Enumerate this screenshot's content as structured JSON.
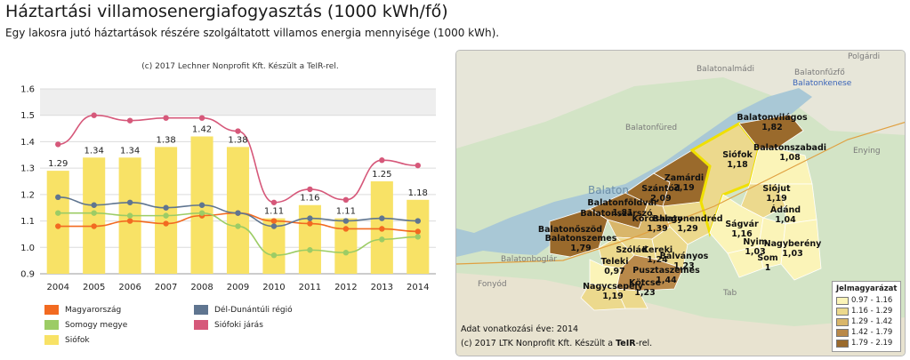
{
  "page": {
    "title": "Háztartási villamosenergiafogyasztás (1000 kWh/fő)",
    "subtitle": "Egy lakosra jutó háztartások részére szolgáltatott villamos energia mennyisége (1000 kWh)."
  },
  "chart_data": {
    "type": "bar",
    "credit": "(c) 2017 Lechner Nonprofit Kft. Készült a TeIR-rel.",
    "categories": [
      "2004",
      "2005",
      "2006",
      "2007",
      "2008",
      "2009",
      "2010",
      "2011",
      "2012",
      "2013",
      "2014"
    ],
    "ylim": [
      0.9,
      1.6
    ],
    "yticks": [
      0.9,
      1.0,
      1.1,
      1.2,
      1.3,
      1.4,
      1.5,
      1.6
    ],
    "bar_series": {
      "name": "Siófok",
      "color": "#f8e266",
      "values": [
        1.29,
        1.34,
        1.34,
        1.38,
        1.42,
        1.38,
        1.11,
        1.16,
        1.11,
        1.25,
        1.18
      ],
      "labels": [
        "1.29",
        "1.34",
        "1.34",
        "1.38",
        "1.42",
        "1.38",
        "1.11",
        "1.16",
        "1.11",
        "1.25",
        "1.18"
      ]
    },
    "line_series": [
      {
        "name": "Magyarország",
        "color": "#f26a21",
        "values": [
          1.08,
          1.08,
          1.1,
          1.09,
          1.12,
          1.13,
          1.1,
          1.09,
          1.07,
          1.07,
          1.06
        ]
      },
      {
        "name": "Somogy megye",
        "color": "#9ccc65",
        "values": [
          1.13,
          1.13,
          1.12,
          1.12,
          1.13,
          1.08,
          0.97,
          0.99,
          0.98,
          1.03,
          1.04
        ]
      },
      {
        "name": "Dél-Dunántúli régió",
        "color": "#5f7590",
        "values": [
          1.19,
          1.16,
          1.17,
          1.15,
          1.16,
          1.13,
          1.08,
          1.11,
          1.1,
          1.11,
          1.1
        ]
      },
      {
        "name": "Siófoki járás",
        "color": "#d6587a",
        "values": [
          1.39,
          1.5,
          1.48,
          1.49,
          1.49,
          1.44,
          1.17,
          1.22,
          1.18,
          1.33,
          1.31
        ]
      }
    ],
    "legend": [
      {
        "name": "Magyarország",
        "color": "#f26a21"
      },
      {
        "name": "Dél-Dunántúli régió",
        "color": "#5f7590"
      },
      {
        "name": "Somogy megye",
        "color": "#9ccc65"
      },
      {
        "name": "Siófoki járás",
        "color": "#d6587a"
      },
      {
        "name": "Siófok",
        "color": "#f8e266"
      }
    ]
  },
  "map": {
    "regions": [
      {
        "name": "Balatonvilágos",
        "value": "1,82"
      },
      {
        "name": "Balatonszabadi",
        "value": "1,08"
      },
      {
        "name": "Siófok",
        "value": "1,18"
      },
      {
        "name": "Siójut",
        "value": "1,19"
      },
      {
        "name": "Zamárdi",
        "value": "2,19"
      },
      {
        "name": "Szántód",
        "value": "2,09"
      },
      {
        "name": "Ádánd",
        "value": "1,04"
      },
      {
        "name": "Balatonföldvár",
        "value": "1,81"
      },
      {
        "name": "Balatonszárszó",
        "value": ""
      },
      {
        "name": "Kőröshegy",
        "value": "1,39"
      },
      {
        "name": "Balatonendréd",
        "value": "1,29"
      },
      {
        "name": "Ságvár",
        "value": "1,16"
      },
      {
        "name": "Balatonszemes",
        "value": "1,79"
      },
      {
        "name": "Nyim",
        "value": "1,03"
      },
      {
        "name": "Nagyberény",
        "value": "1,03"
      },
      {
        "name": "Szólád",
        "value": ""
      },
      {
        "name": "Kereki",
        "value": "1,24"
      },
      {
        "name": "Bálványos",
        "value": "1,23"
      },
      {
        "name": "Som",
        "value": "1"
      },
      {
        "name": "Teleki",
        "value": "0,97"
      },
      {
        "name": "Pusztaszemes",
        "value": "1,44"
      },
      {
        "name": "Kötcse",
        "value": "1,23"
      },
      {
        "name": "Nagycsepely",
        "value": "1,19"
      },
      {
        "name": "Balatonőszöd",
        "value": ""
      }
    ],
    "places": [
      "Polgárdi",
      "Balatonalmádi",
      "Balatonkenese",
      "Balatonfűzfő",
      "Balatonfüred",
      "Enying",
      "Balaton",
      "Balatonboglár",
      "Fonyód",
      "Tab"
    ],
    "footer_year_label": "Adat vonatkozási éve: 2014",
    "footer_credit_prefix": "(c) 2017 LTK Nonprofit Kft. Készült a ",
    "footer_credit_brand": "TeIR",
    "footer_credit_suffix": "-rel.",
    "legend_title": "Jelmagyarázat",
    "legend": [
      {
        "range": "0.97 - 1.16",
        "color": "#fbf4b8"
      },
      {
        "range": "1.16 - 1.29",
        "color": "#ecd98d"
      },
      {
        "range": "1.29 - 1.42",
        "color": "#d9b66a"
      },
      {
        "range": "1.42 - 1.79",
        "color": "#b9894a"
      },
      {
        "range": "1.79 - 2.19",
        "color": "#9a6a2c"
      }
    ]
  }
}
